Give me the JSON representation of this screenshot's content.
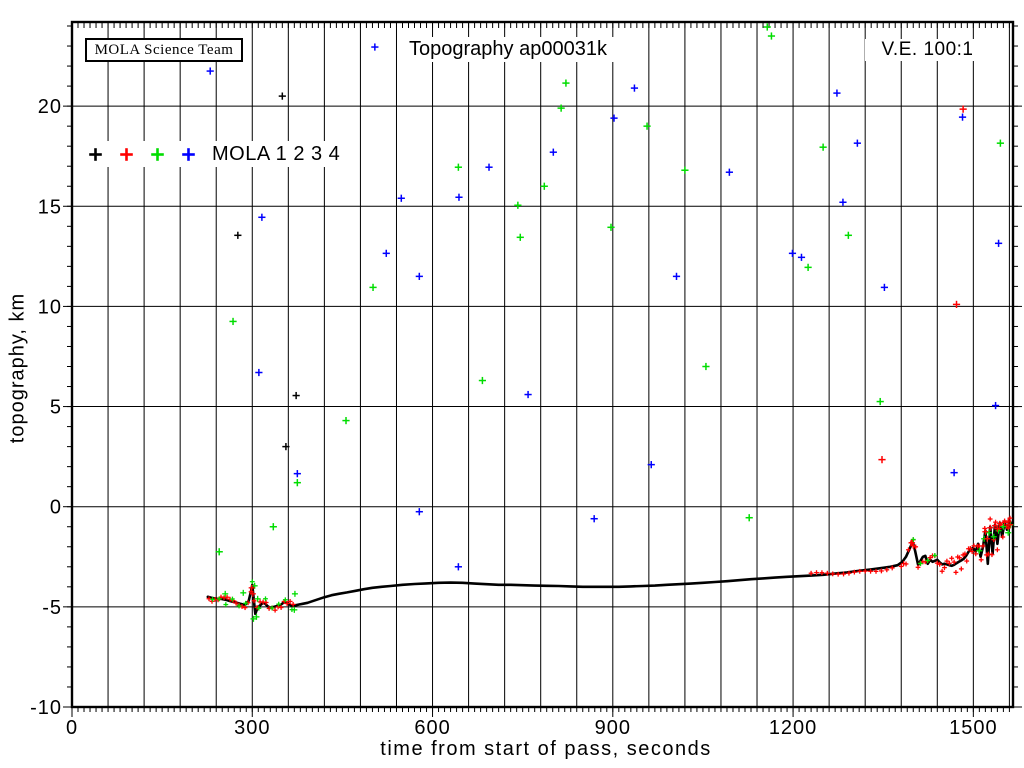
{
  "figure": {
    "title": "Topography ap00031k",
    "ve_label": "V.E. 100:1",
    "credit_box": "MOLA Science Team",
    "xlabel": "time from start of pass, seconds",
    "ylabel": "topography, km",
    "legend": {
      "text": "MOLA 1 2 3 4",
      "markers": [
        {
          "name": "MOLA 1",
          "color": "#000000"
        },
        {
          "name": "MOLA 2",
          "color": "#ff0000"
        },
        {
          "name": "MOLA 3",
          "color": "#00dd00"
        },
        {
          "name": "MOLA 4",
          "color": "#0000ff"
        }
      ]
    }
  },
  "chart_data": {
    "type": "scatter",
    "title": "Topography ap00031k",
    "xlabel": "time from start of pass, seconds",
    "ylabel": "topography, km",
    "xlim": [
      0,
      1566
    ],
    "ylim": [
      -10,
      24.2
    ],
    "x_major_ticks": [
      0,
      300,
      600,
      900,
      1200,
      1500
    ],
    "x_grid_step": 60,
    "x_minor_step": 10,
    "y_major_ticks": [
      -10,
      -5,
      0,
      5,
      10,
      15,
      20
    ],
    "y_minor_step": 1,
    "grid": true,
    "legend": [
      "MOLA 1",
      "MOLA 2",
      "MOLA 3",
      "MOLA 4"
    ],
    "annotations": [
      "MOLA Science Team",
      "V.E. 100:1"
    ],
    "colors": {
      "k": "#000000",
      "r": "#ff0000",
      "g": "#00dd00",
      "b": "#0000ff"
    },
    "series": {
      "ground_track": {
        "name": "laser ground track (topographic profile)",
        "color": "k",
        "points": [
          [
            226,
            -4.5
          ],
          [
            232,
            -4.55
          ],
          [
            240,
            -4.6
          ],
          [
            248,
            -4.6
          ],
          [
            256,
            -4.65
          ],
          [
            264,
            -4.72
          ],
          [
            272,
            -4.78
          ],
          [
            280,
            -4.85
          ],
          [
            288,
            -4.9
          ],
          [
            294,
            -4.7
          ],
          [
            298,
            -4.2
          ],
          [
            300,
            -3.9
          ],
          [
            302,
            -4.5
          ],
          [
            305,
            -5.35
          ],
          [
            308,
            -5.1
          ],
          [
            312,
            -4.95
          ],
          [
            316,
            -4.85
          ],
          [
            320,
            -4.8
          ],
          [
            325,
            -4.95
          ],
          [
            330,
            -5.05
          ],
          [
            336,
            -5.0
          ],
          [
            342,
            -4.95
          ],
          [
            348,
            -4.88
          ],
          [
            354,
            -4.75
          ],
          [
            360,
            -4.85
          ],
          [
            366,
            -4.95
          ],
          [
            372,
            -4.92
          ],
          [
            378,
            -4.88
          ],
          [
            384,
            -4.85
          ],
          [
            392,
            -4.8
          ],
          [
            400,
            -4.72
          ],
          [
            410,
            -4.62
          ],
          [
            420,
            -4.52
          ],
          [
            432,
            -4.42
          ],
          [
            444,
            -4.35
          ],
          [
            458,
            -4.28
          ],
          [
            472,
            -4.2
          ],
          [
            486,
            -4.12
          ],
          [
            500,
            -4.05
          ],
          [
            515,
            -4.0
          ],
          [
            530,
            -3.96
          ],
          [
            550,
            -3.9
          ],
          [
            570,
            -3.86
          ],
          [
            590,
            -3.83
          ],
          [
            610,
            -3.8
          ],
          [
            630,
            -3.79
          ],
          [
            650,
            -3.8
          ],
          [
            670,
            -3.84
          ],
          [
            690,
            -3.87
          ],
          [
            710,
            -3.9
          ],
          [
            730,
            -3.9
          ],
          [
            750,
            -3.92
          ],
          [
            770,
            -3.94
          ],
          [
            790,
            -3.95
          ],
          [
            810,
            -3.96
          ],
          [
            830,
            -3.98
          ],
          [
            850,
            -4.0
          ],
          [
            870,
            -4.0
          ],
          [
            890,
            -4.0
          ],
          [
            910,
            -4.0
          ],
          [
            930,
            -3.98
          ],
          [
            950,
            -3.96
          ],
          [
            970,
            -3.94
          ],
          [
            990,
            -3.9
          ],
          [
            1010,
            -3.87
          ],
          [
            1030,
            -3.84
          ],
          [
            1050,
            -3.8
          ],
          [
            1070,
            -3.76
          ],
          [
            1090,
            -3.72
          ],
          [
            1110,
            -3.67
          ],
          [
            1130,
            -3.62
          ],
          [
            1150,
            -3.58
          ],
          [
            1170,
            -3.54
          ],
          [
            1190,
            -3.5
          ],
          [
            1210,
            -3.47
          ],
          [
            1230,
            -3.44
          ],
          [
            1250,
            -3.4
          ],
          [
            1270,
            -3.34
          ],
          [
            1290,
            -3.28
          ],
          [
            1310,
            -3.2
          ],
          [
            1330,
            -3.13
          ],
          [
            1350,
            -3.05
          ],
          [
            1362,
            -3.0
          ],
          [
            1374,
            -2.92
          ],
          [
            1382,
            -2.75
          ],
          [
            1388,
            -2.5
          ],
          [
            1394,
            -2.1
          ],
          [
            1399,
            -1.75
          ],
          [
            1403,
            -2.2
          ],
          [
            1408,
            -2.9
          ],
          [
            1412,
            -2.7
          ],
          [
            1416,
            -2.5
          ],
          [
            1420,
            -2.45
          ],
          [
            1424,
            -2.85
          ],
          [
            1428,
            -2.65
          ],
          [
            1432,
            -2.75
          ],
          [
            1436,
            -2.7
          ],
          [
            1440,
            -2.65
          ],
          [
            1444,
            -2.78
          ],
          [
            1448,
            -2.88
          ],
          [
            1452,
            -2.85
          ],
          [
            1456,
            -2.88
          ],
          [
            1460,
            -2.92
          ],
          [
            1464,
            -2.95
          ],
          [
            1468,
            -2.9
          ],
          [
            1472,
            -2.82
          ],
          [
            1476,
            -2.75
          ],
          [
            1480,
            -2.68
          ],
          [
            1484,
            -2.6
          ],
          [
            1488,
            -2.45
          ],
          [
            1492,
            -2.25
          ],
          [
            1496,
            -2.12
          ],
          [
            1500,
            -2.05
          ],
          [
            1504,
            -2.25
          ],
          [
            1508,
            -1.85
          ],
          [
            1512,
            -2.5
          ],
          [
            1516,
            -2.0
          ],
          [
            1520,
            -1.2
          ],
          [
            1524,
            -2.85
          ],
          [
            1528,
            -1.0
          ],
          [
            1532,
            -2.35
          ],
          [
            1536,
            -0.9
          ],
          [
            1540,
            -1.85
          ],
          [
            1544,
            -0.8
          ],
          [
            1548,
            -1.5
          ],
          [
            1552,
            -0.75
          ],
          [
            1556,
            -1.15
          ],
          [
            1560,
            -0.7
          ],
          [
            1563,
            -0.85
          ]
        ]
      },
      "noise_points": [
        [
          350,
          20.5,
          "k"
        ],
        [
          276,
          13.55,
          "k"
        ],
        [
          373,
          5.55,
          "k"
        ],
        [
          356,
          3.0,
          "k"
        ],
        [
          1483,
          19.85,
          "r"
        ],
        [
          1472,
          10.1,
          "r"
        ],
        [
          1348,
          2.35,
          "r"
        ],
        [
          245,
          -2.25,
          "g"
        ],
        [
          268,
          9.25,
          "g"
        ],
        [
          335,
          -1.0,
          "g"
        ],
        [
          375,
          1.2,
          "g"
        ],
        [
          456,
          4.3,
          "g"
        ],
        [
          501,
          10.95,
          "g"
        ],
        [
          643,
          16.95,
          "g"
        ],
        [
          683,
          6.3,
          "g"
        ],
        [
          742,
          15.05,
          "g"
        ],
        [
          746,
          13.45,
          "g"
        ],
        [
          786,
          16.0,
          "g"
        ],
        [
          814,
          19.9,
          "g"
        ],
        [
          822,
          21.15,
          "g"
        ],
        [
          897,
          13.95,
          "g"
        ],
        [
          957,
          19.0,
          "g"
        ],
        [
          1020,
          16.8,
          "g"
        ],
        [
          1055,
          7.0,
          "g"
        ],
        [
          1127,
          -0.55,
          "g"
        ],
        [
          1157,
          23.95,
          "g"
        ],
        [
          1164,
          23.5,
          "g"
        ],
        [
          1225,
          11.95,
          "g"
        ],
        [
          1250,
          17.95,
          "g"
        ],
        [
          1292,
          13.55,
          "g"
        ],
        [
          1345,
          5.25,
          "g"
        ],
        [
          1545,
          18.15,
          "g"
        ],
        [
          230,
          21.75,
          "b"
        ],
        [
          311,
          6.7,
          "b"
        ],
        [
          316,
          14.45,
          "b"
        ],
        [
          375,
          1.65,
          "b"
        ],
        [
          504,
          22.95,
          "b"
        ],
        [
          523,
          12.65,
          "b"
        ],
        [
          548,
          15.4,
          "b"
        ],
        [
          578,
          11.5,
          "b"
        ],
        [
          578,
          -0.25,
          "b"
        ],
        [
          643,
          -3.0,
          "b"
        ],
        [
          644,
          15.45,
          "b"
        ],
        [
          694,
          16.95,
          "b"
        ],
        [
          759,
          5.6,
          "b"
        ],
        [
          801,
          17.7,
          "b"
        ],
        [
          869,
          -0.6,
          "b"
        ],
        [
          902,
          19.4,
          "b"
        ],
        [
          936,
          20.9,
          "b"
        ],
        [
          964,
          2.1,
          "b"
        ],
        [
          1006,
          11.5,
          "b"
        ],
        [
          1094,
          16.7,
          "b"
        ],
        [
          1199,
          12.65,
          "b"
        ],
        [
          1214,
          12.45,
          "b"
        ],
        [
          1273,
          20.65,
          "b"
        ],
        [
          1283,
          15.2,
          "b"
        ],
        [
          1307,
          18.15,
          "b"
        ],
        [
          1352,
          10.95,
          "b"
        ],
        [
          1468,
          1.7,
          "b"
        ],
        [
          1482,
          19.45,
          "b"
        ],
        [
          1537,
          5.05,
          "b"
        ],
        [
          1542,
          13.15,
          "b"
        ]
      ]
    },
    "overlay_segments": [
      {
        "color": "r",
        "t0": 228,
        "t1": 372,
        "step": 5,
        "amp": 0.13
      },
      {
        "color": "g",
        "t0": 234,
        "t1": 368,
        "step": 11,
        "amp": 0.18
      },
      {
        "color": "r",
        "t0": 1230,
        "t1": 1366,
        "step": 9,
        "amp": 0.1
      },
      {
        "color": "r",
        "t0": 1380,
        "t1": 1464,
        "step": 4,
        "amp": 0.28
      },
      {
        "color": "r",
        "t0": 1468,
        "t1": 1563,
        "step": 3,
        "amp": 0.3
      },
      {
        "color": "g",
        "t0": 1400,
        "t1": 1440,
        "step": 12,
        "amp": 0.3
      }
    ],
    "overlay_extras": [
      {
        "color": "g",
        "points": [
          [
            302,
            -5.6
          ],
          [
            304,
            -3.95
          ],
          [
            307,
            -5.5
          ],
          [
            309,
            -4.6
          ],
          [
            370,
            -5.15
          ],
          [
            371,
            -4.35
          ],
          [
            285,
            -4.3
          ],
          [
            255,
            -4.35
          ],
          [
            1510,
            -2.2
          ],
          [
            1518,
            -1.6
          ],
          [
            1526,
            -1.3
          ],
          [
            1534,
            -1.5
          ],
          [
            1542,
            -1.2
          ],
          [
            1550,
            -1.0
          ],
          [
            1558,
            -1.3
          ],
          [
            1562,
            -0.9
          ]
        ]
      },
      {
        "color": "r",
        "points": [
          [
            299,
            -4.05
          ],
          [
            301,
            -4.35
          ],
          [
            1398,
            -1.8
          ],
          [
            1400,
            -1.95
          ],
          [
            1520,
            -1.25
          ],
          [
            1523,
            -1.6
          ],
          [
            1528,
            -1.05
          ],
          [
            1536,
            -0.95
          ],
          [
            1540,
            -1.1
          ],
          [
            1544,
            -0.85
          ],
          [
            1552,
            -0.78
          ],
          [
            1558,
            -0.72
          ],
          [
            1561,
            -0.9
          ]
        ]
      }
    ]
  }
}
